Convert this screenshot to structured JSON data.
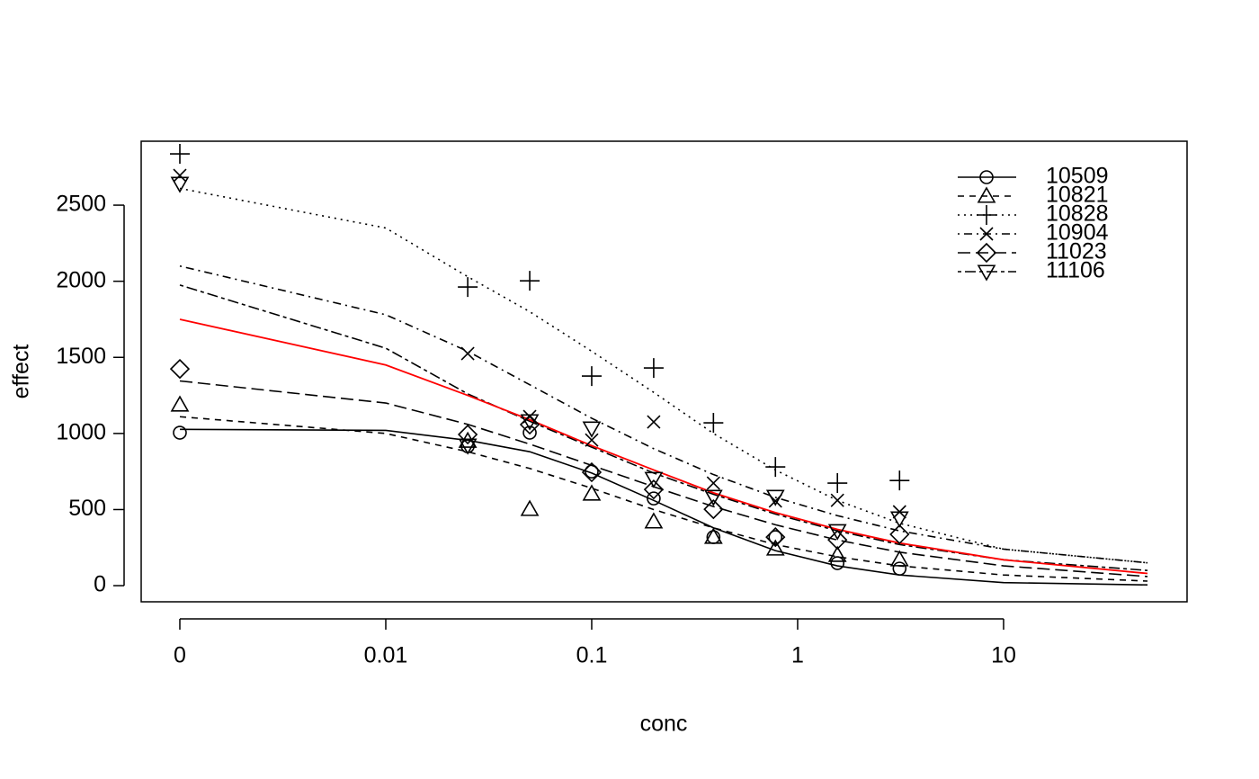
{
  "chart_data": {
    "type": "dose-response",
    "xlabel": "conc",
    "ylabel": "effect",
    "log_x": true,
    "xlim": [
      0.000649,
      77.8
    ],
    "ylim": [
      -106,
      2920
    ],
    "xticks": [
      {
        "value": 0.001,
        "label": "0"
      },
      0.01,
      0.1,
      1,
      10
    ],
    "yticks": [
      0,
      500,
      1000,
      1500,
      2000,
      2500
    ],
    "legend": "top-right",
    "x": [
      0.001,
      0.025,
      0.05,
      0.1,
      0.2,
      0.39,
      0.78,
      1.56,
      3.125
    ],
    "curve_x": [
      0.001,
      0.01,
      0.025,
      0.05,
      0.1,
      0.2,
      0.39,
      0.78,
      1.56,
      3.125,
      10,
      50
    ],
    "series": [
      {
        "name": "10509",
        "color": "#000000",
        "marker": "circle",
        "linestyle": "solid",
        "values": [
          1005,
          916,
          1005,
          750,
          573,
          319,
          319,
          148,
          112
        ],
        "curve": [
          1027,
          1020,
          955,
          880,
          740,
          560,
          380,
          230,
          130,
          70,
          20,
          5
        ]
      },
      {
        "name": "10821",
        "color": "#000000",
        "marker": "triangle",
        "linestyle": "dashed",
        "values": [
          1188,
          950,
          502,
          603,
          420,
          319,
          242,
          200,
          171
        ],
        "curve": [
          1110,
          1000,
          880,
          770,
          640,
          500,
          380,
          270,
          190,
          130,
          70,
          30
        ]
      },
      {
        "name": "10828",
        "color": "#000000",
        "marker": "plus",
        "linestyle": "dotted",
        "values": [
          2837,
          1962,
          2003,
          1377,
          1430,
          1070,
          780,
          674,
          691
        ],
        "curve": [
          2610,
          2350,
          2030,
          1800,
          1540,
          1270,
          1000,
          760,
          560,
          410,
          240,
          150
        ]
      },
      {
        "name": "10904",
        "color": "#000000",
        "marker": "cross",
        "linestyle": "dotdash",
        "values": [
          2695,
          1525,
          1111,
          957,
          1076,
          674,
          556,
          561,
          485
        ],
        "curve": [
          2100,
          1780,
          1540,
          1320,
          1100,
          900,
          730,
          580,
          460,
          360,
          240,
          150
        ]
      },
      {
        "name": "11023",
        "color": "#000000",
        "marker": "diamond",
        "linestyle": "longdash",
        "values": [
          1424,
          993,
          1058,
          745,
          632,
          502,
          319,
          301,
          337
        ],
        "curve": [
          1345,
          1200,
          1060,
          930,
          790,
          650,
          520,
          400,
          300,
          220,
          130,
          60
        ]
      },
      {
        "name": "11106",
        "color": "#000000",
        "marker": "triangle-down",
        "linestyle": "twodash",
        "values": [
          2642,
          922,
          1082,
          1034,
          703,
          585,
          585,
          360,
          443
        ],
        "curve": [
          1975,
          1560,
          1260,
          1080,
          910,
          740,
          600,
          470,
          360,
          270,
          170,
          100
        ]
      }
    ],
    "overall_curve": {
      "color": "#ff0000",
      "values": [
        1750,
        1450,
        1250,
        1090,
        920,
        760,
        610,
        480,
        370,
        280,
        170,
        80
      ]
    }
  }
}
